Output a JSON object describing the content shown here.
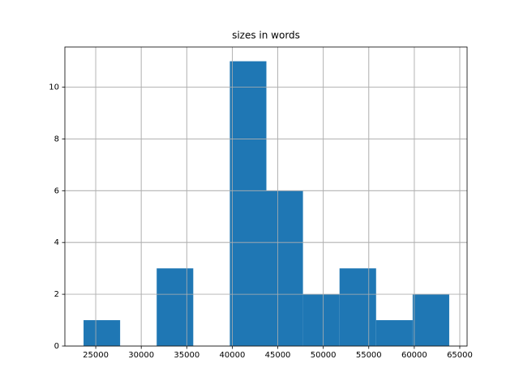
{
  "chart_data": {
    "type": "histogram",
    "title": "sizes in words",
    "bins": [
      23660,
      27678,
      31696,
      35714,
      39732,
      43750,
      47768,
      51786,
      55804,
      59822,
      63840
    ],
    "counts": [
      1,
      0,
      3,
      0,
      11,
      6,
      2,
      3,
      1,
      2
    ],
    "color": "#1f77b4",
    "xlim": [
      21607,
      65804
    ],
    "xticks": [
      25000,
      30000,
      35000,
      40000,
      45000,
      50000,
      55000,
      60000,
      65000
    ],
    "ylim": [
      0,
      11.55
    ],
    "yticks": [
      0,
      2,
      4,
      6,
      8,
      10
    ],
    "grid": true
  }
}
